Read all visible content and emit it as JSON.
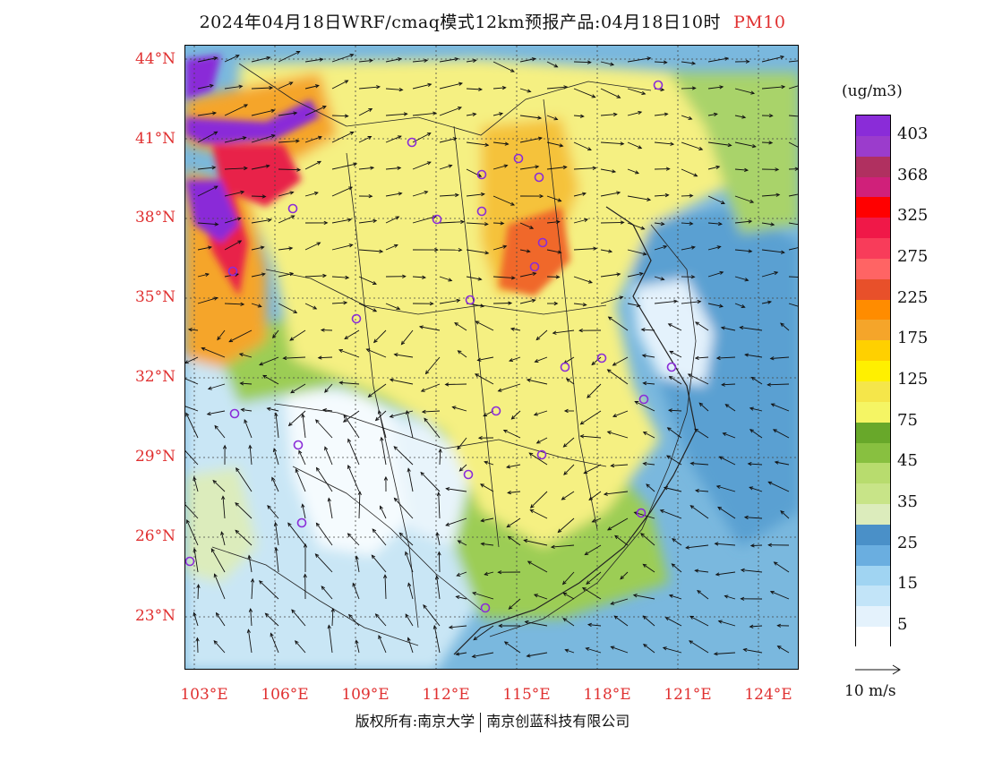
{
  "title": {
    "main": "2024年04月18日WRF/cmaq模式12km预报产品:04月18日10时",
    "variable": "PM10"
  },
  "map": {
    "lat_labels": [
      "44°N",
      "41°N",
      "38°N",
      "35°N",
      "32°N",
      "29°N",
      "26°N",
      "23°N"
    ],
    "lon_labels": [
      "103°E",
      "106°E",
      "109°E",
      "112°E",
      "115°E",
      "118°E",
      "121°E",
      "124°E"
    ],
    "colors": {
      "sea": "#7ab8de",
      "land_low": "#c9e6f5",
      "land_clean": "#f5fbfe",
      "green": "#9ccd55",
      "yellow": "#f5f082",
      "orange": "#f5a52a",
      "red": "#e8204a",
      "purple": "#8a2cd8",
      "city_marker": "#8a2cd8"
    },
    "cities": [
      "city",
      "city",
      "city",
      "city",
      "city",
      "city",
      "city",
      "city",
      "city",
      "city",
      "city",
      "city",
      "city",
      "city",
      "city",
      "city",
      "city",
      "city",
      "city",
      "city",
      "city",
      "city",
      "city",
      "city",
      "city",
      "city"
    ]
  },
  "colorbar": {
    "unit": "(ug/m3)",
    "colors": [
      "#8a2cd8",
      "#9b3ccc",
      "#b03060",
      "#d0207a",
      "#ff0000",
      "#f01848",
      "#f83c5a",
      "#ff6464",
      "#e8502a",
      "#ff8c00",
      "#f5a52a",
      "#ffd000",
      "#fff000",
      "#f5e64a",
      "#f5f564",
      "#68a82a",
      "#88c040",
      "#b8dc6e",
      "#c8e488",
      "#dcecbc",
      "#4a90c8",
      "#6aaee0",
      "#a0d4f2",
      "#c2e4f8",
      "#e4f2fc",
      "#ffffff"
    ],
    "labels": [
      "403",
      "368",
      "325",
      "275",
      "225",
      "175",
      "125",
      "75",
      "45",
      "35",
      "25",
      "15",
      "5"
    ]
  },
  "wind_reference": {
    "label": "10 m/s"
  },
  "copyright": {
    "left": "版权所有:南京大学",
    "right": "南京创蓝科技有限公司"
  }
}
